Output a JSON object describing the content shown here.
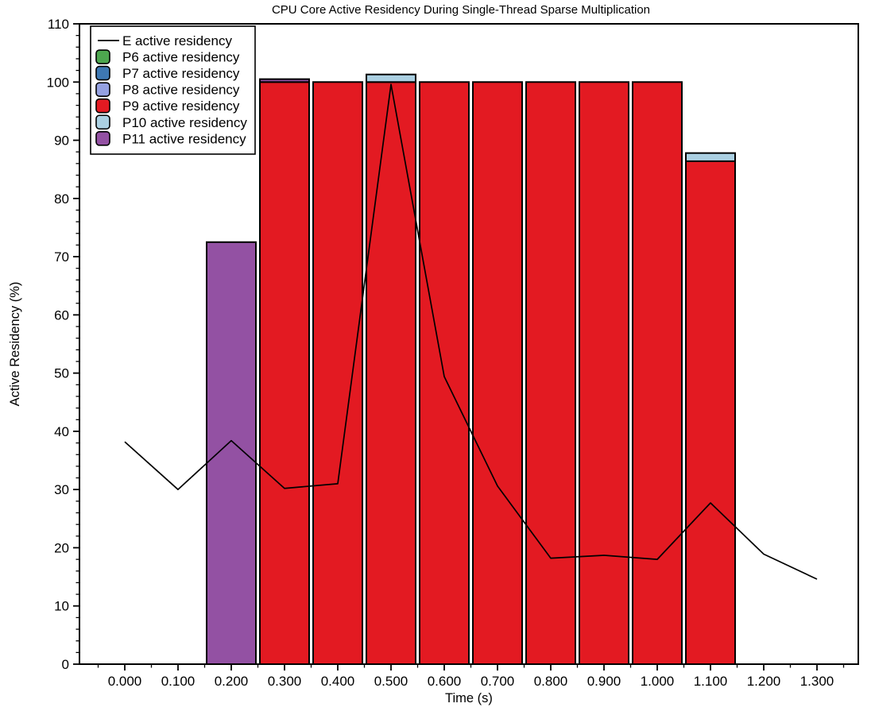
{
  "figure": {
    "title": "CPU Core Active Residency During Single-Thread Sparse Multiplication"
  },
  "chart_data": {
    "type": "bar",
    "subtype": "stacked-bars-with-line-overlay",
    "title": "CPU Core Active Residency During Single-Thread Sparse Multiplication",
    "xlabel": "Time (s)",
    "ylabel": "Active Residency (%)",
    "x": [
      0.0,
      0.1,
      0.2,
      0.3,
      0.4,
      0.5,
      0.6,
      0.7,
      0.8,
      0.9,
      1.0,
      1.1,
      1.2,
      1.3
    ],
    "x_tick_labels": [
      "0.000",
      "0.100",
      "0.200",
      "0.300",
      "0.400",
      "0.500",
      "0.600",
      "0.700",
      "0.800",
      "0.900",
      "1.000",
      "1.100",
      "1.200",
      "1.300"
    ],
    "y_ticks": [
      0,
      10,
      20,
      30,
      40,
      50,
      60,
      70,
      80,
      90,
      100,
      110
    ],
    "ylim": [
      0,
      110
    ],
    "x_minor_step": 0.05,
    "y_minor_step": 2,
    "bar_width": 0.0925,
    "grid": "off",
    "legend_position": "upper-left",
    "line_color": "#000000",
    "series": [
      {
        "name": "E active residency",
        "type": "line",
        "color": "#000000",
        "values": [
          38.2,
          30.0,
          38.4,
          30.2,
          31.0,
          99.6,
          49.4,
          30.6,
          18.2,
          18.7,
          18.0,
          27.7,
          18.9,
          14.6
        ]
      },
      {
        "name": "P6 active residency",
        "type": "bar",
        "color": "#4da64f",
        "values": [
          0,
          0,
          0,
          0,
          0,
          0,
          0,
          0,
          0,
          0,
          0,
          0,
          0,
          0
        ]
      },
      {
        "name": "P7 active residency",
        "type": "bar",
        "color": "#3e78b3",
        "values": [
          0,
          0,
          0,
          0,
          0,
          0,
          0,
          0,
          0,
          0,
          0,
          0,
          0,
          0
        ]
      },
      {
        "name": "P8 active residency",
        "type": "bar",
        "color": "#95a1e1",
        "values": [
          0,
          0,
          0,
          0,
          0,
          0,
          0,
          0,
          0,
          0,
          0,
          0,
          0,
          0
        ]
      },
      {
        "name": "P9 active residency",
        "type": "bar",
        "color": "#e31a22",
        "values": [
          0,
          0,
          0,
          100.0,
          100.0,
          100.0,
          100.0,
          100.0,
          100.0,
          100.0,
          100.0,
          86.4,
          0,
          0
        ]
      },
      {
        "name": "P10 active residency",
        "type": "bar",
        "color": "#abd0e2",
        "values": [
          0,
          0,
          0,
          0,
          0,
          1.3,
          0,
          0,
          0,
          0,
          0,
          1.4,
          0,
          0
        ]
      },
      {
        "name": "P11 active residency",
        "type": "bar",
        "color": "#9351a3",
        "values": [
          0,
          0,
          72.5,
          0.5,
          0,
          0,
          0,
          0,
          0,
          0,
          0,
          0,
          0,
          0
        ]
      }
    ]
  },
  "layout_colors": {
    "background": "#ffffff",
    "axis": "#000000",
    "legend_border": "#000000",
    "legend_background": "#ffffff"
  }
}
